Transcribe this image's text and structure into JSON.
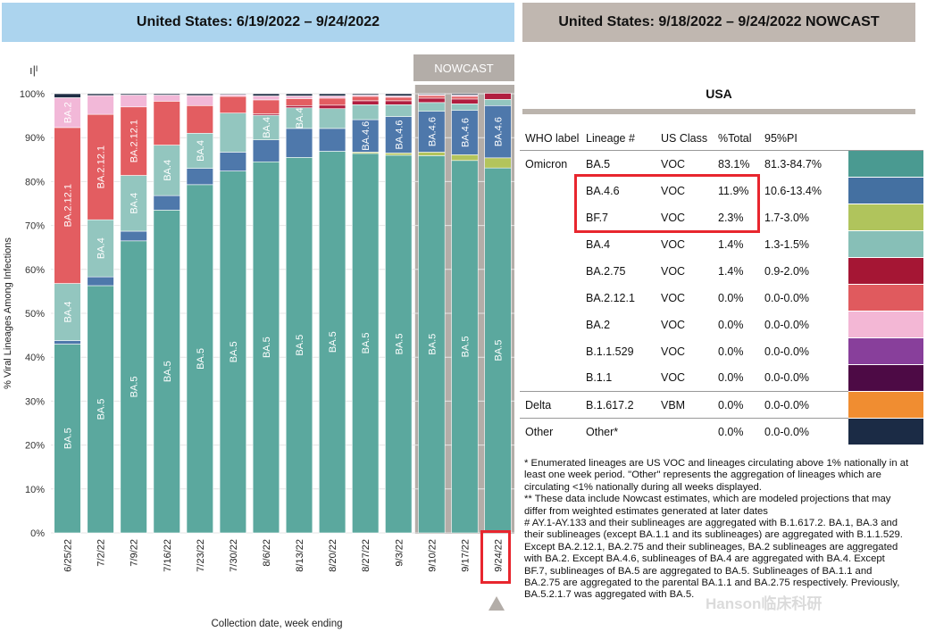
{
  "header_left": "United States: 6/19/2022 – 9/24/2022",
  "header_right": "United States: 9/18/2022 – 9/24/2022 NOWCAST",
  "nowcast_label": "NOWCAST",
  "usa_title": "USA",
  "chart_icon": "bar-chart-icon",
  "chart_data": {
    "type": "bar",
    "stacked": true,
    "ylabel": "% Viral Lineages Among Infections",
    "xlabel": "Collection date, week ending",
    "ylim": [
      0,
      100
    ],
    "yticks": [
      "0%",
      "10%",
      "20%",
      "30%",
      "40%",
      "50%",
      "60%",
      "70%",
      "80%",
      "90%",
      "100%"
    ],
    "categories": [
      "6/25/22",
      "7/2/22",
      "7/9/22",
      "7/16/22",
      "7/23/22",
      "7/30/22",
      "8/6/22",
      "8/13/22",
      "8/20/22",
      "8/27/22",
      "9/3/22",
      "9/10/22",
      "9/17/22",
      "9/24/22"
    ],
    "nowcast_categories": [
      "9/10/22",
      "9/17/22",
      "9/24/22"
    ],
    "highlighted_category": "9/24/22",
    "series": [
      {
        "name": "BA.5",
        "color": "#5ba89e",
        "values": [
          43,
          56.3,
          66.5,
          73.5,
          79.3,
          82.4,
          84.5,
          85.5,
          86.9,
          86.4,
          86,
          85.9,
          84.8,
          83.1
        ]
      },
      {
        "name": "BF.7",
        "color": "#b3c45c",
        "values": [
          0,
          0,
          0,
          0,
          0,
          0,
          0,
          0,
          0,
          0.3,
          0.5,
          0.8,
          1.3,
          2.3
        ]
      },
      {
        "name": "BA.4.6",
        "color": "#4e78ab",
        "values": [
          0.8,
          2,
          2.2,
          3.3,
          3.7,
          4.3,
          5,
          6.6,
          5.2,
          7.4,
          8.3,
          9.3,
          10.1,
          11.9
        ]
      },
      {
        "name": "BA.4",
        "color": "#93c6bf",
        "values": [
          13,
          13,
          12.7,
          11.5,
          8,
          8.9,
          5.6,
          4.7,
          4.5,
          3.4,
          2.7,
          2,
          1.5,
          1.4
        ]
      },
      {
        "name": "BA.2.75",
        "color": "#b11e3f",
        "values": [
          0,
          0,
          0,
          0,
          0,
          0,
          0.3,
          0.5,
          0.8,
          0.9,
          0.9,
          1,
          1.1,
          1.4
        ]
      },
      {
        "name": "BA.2.12.1",
        "color": "#e35d61",
        "values": [
          35.5,
          24,
          15.6,
          10,
          6.3,
          3.8,
          3.2,
          1.6,
          1.6,
          1,
          0.8,
          0.6,
          0.6,
          0
        ]
      },
      {
        "name": "BA.2",
        "color": "#f2b8d8",
        "values": [
          6.8,
          4.3,
          2.7,
          1.4,
          2.3,
          0.4,
          0.9,
          0.6,
          0.5,
          0.3,
          0.3,
          0.2,
          0.3,
          0
        ]
      },
      {
        "name": "Other",
        "color": "#1f2e45",
        "values": [
          0.9,
          0.4,
          0.3,
          0.3,
          0.4,
          0.2,
          0.5,
          0.5,
          0.5,
          0.3,
          0.5,
          0.2,
          0.3,
          0
        ]
      }
    ],
    "bar_labels": [
      {
        "bar": 0,
        "series": "BA.5",
        "text": "BA.5"
      },
      {
        "bar": 0,
        "series": "BA.4",
        "text": "BA.4"
      },
      {
        "bar": 0,
        "series": "BA.2.12.1",
        "text": "BA.2.12.1"
      },
      {
        "bar": 0,
        "series": "BA.2",
        "text": "BA.2"
      },
      {
        "bar": 1,
        "series": "BA.5",
        "text": "BA.5"
      },
      {
        "bar": 1,
        "series": "BA.4",
        "text": "BA.4"
      },
      {
        "bar": 1,
        "series": "BA.2.12.1",
        "text": "BA.2.12.1"
      },
      {
        "bar": 2,
        "series": "BA.5",
        "text": "BA.5"
      },
      {
        "bar": 2,
        "series": "BA.4",
        "text": "BA.4"
      },
      {
        "bar": 2,
        "series": "BA.2.12.1",
        "text": "BA.2.12.1"
      },
      {
        "bar": 3,
        "series": "BA.5",
        "text": "BA.5"
      },
      {
        "bar": 3,
        "series": "BA.4",
        "text": "BA.4"
      },
      {
        "bar": 4,
        "series": "BA.5",
        "text": "BA.5"
      },
      {
        "bar": 4,
        "series": "BA.4",
        "text": "BA.4"
      },
      {
        "bar": 5,
        "series": "BA.5",
        "text": "BA.5"
      },
      {
        "bar": 6,
        "series": "BA.5",
        "text": "BA.5"
      },
      {
        "bar": 6,
        "series": "BA.4",
        "text": "BA.4"
      },
      {
        "bar": 7,
        "series": "BA.5",
        "text": "BA.5"
      },
      {
        "bar": 7,
        "series": "BA.4",
        "text": "BA.4"
      },
      {
        "bar": 8,
        "series": "BA.5",
        "text": "BA.5"
      },
      {
        "bar": 9,
        "series": "BA.5",
        "text": "BA.5"
      },
      {
        "bar": 9,
        "series": "BA.4.6",
        "text": "BA.4.6"
      },
      {
        "bar": 10,
        "series": "BA.5",
        "text": "BA.5"
      },
      {
        "bar": 10,
        "series": "BA.4.6",
        "text": "BA.4.6"
      },
      {
        "bar": 11,
        "series": "BA.5",
        "text": "BA.5"
      },
      {
        "bar": 11,
        "series": "BA.4.6",
        "text": "BA.4.6"
      },
      {
        "bar": 12,
        "series": "BA.5",
        "text": "BA.5"
      },
      {
        "bar": 12,
        "series": "BA.4.6",
        "text": "BA.4.6"
      },
      {
        "bar": 13,
        "series": "BA.5",
        "text": "BA.5"
      },
      {
        "bar": 13,
        "series": "BA.4.6",
        "text": "BA.4.6"
      }
    ]
  },
  "table": {
    "columns": [
      "WHO label",
      "Lineage #",
      "US Class",
      "%Total",
      "95%PI"
    ],
    "rows": [
      {
        "who": "Omicron",
        "lineage": "BA.5",
        "class": "VOC",
        "total": "83.1%",
        "pi": "81.3-84.7%",
        "color": "#4a9a91"
      },
      {
        "who": "",
        "lineage": "BA.4.6",
        "class": "VOC",
        "total": "11.9%",
        "pi": "10.6-13.4%",
        "color": "#4470a1",
        "highlight": true
      },
      {
        "who": "",
        "lineage": "BF.7",
        "class": "VOC",
        "total": "2.3%",
        "pi": "1.7-3.0%",
        "color": "#b0c45c",
        "highlight": true
      },
      {
        "who": "",
        "lineage": "BA.4",
        "class": "VOC",
        "total": "1.4%",
        "pi": "1.3-1.5%",
        "color": "#87bfb7"
      },
      {
        "who": "",
        "lineage": "BA.2.75",
        "class": "VOC",
        "total": "1.4%",
        "pi": "0.9-2.0%",
        "color": "#a51634"
      },
      {
        "who": "",
        "lineage": "BA.2.12.1",
        "class": "VOC",
        "total": "0.0%",
        "pi": "0.0-0.0%",
        "color": "#e05a5e"
      },
      {
        "who": "",
        "lineage": "BA.2",
        "class": "VOC",
        "total": "0.0%",
        "pi": "0.0-0.0%",
        "color": "#f3b7d5"
      },
      {
        "who": "",
        "lineage": "B.1.1.529",
        "class": "VOC",
        "total": "0.0%",
        "pi": "0.0-0.0%",
        "color": "#883f9b"
      },
      {
        "who": "",
        "lineage": "B.1.1",
        "class": "VOC",
        "total": "0.0%",
        "pi": "0.0-0.0%",
        "color": "#4d0a45",
        "group_end": true
      },
      {
        "who": "Delta",
        "lineage": "B.1.617.2",
        "class": "VBM",
        "total": "0.0%",
        "pi": "0.0-0.0%",
        "color": "#f08d31",
        "group_end": true
      },
      {
        "who": "Other",
        "lineage": "Other*",
        "class": "",
        "total": "0.0%",
        "pi": "0.0-0.0%",
        "color": "#1b2b45"
      }
    ]
  },
  "notes": [
    "*     Enumerated lineages are US VOC and lineages circulating above 1% nationally in at least one week period. \"Other\" represents the aggregation of lineages which are circulating <1% nationally during all weeks displayed.",
    "**     These data include Nowcast estimates, which are modeled projections that may differ from weighted estimates generated at later dates",
    "#     AY.1-AY.133 and their sublineages are aggregated with B.1.617.2. BA.1, BA.3 and their sublineages (except BA.1.1 and its sublineages) are aggregated with B.1.1.529. Except BA.2.12.1, BA.2.75 and their sublineages, BA.2 sublineages are aggregated with BA.2. Except BA.4.6, sublineages of BA.4 are aggregated with BA.4. Except BF.7, sublineages of BA.5 are aggregated to BA.5. Sublineages of BA.1.1 and BA.2.75 are aggregated to the parental BA.1.1 and BA.2.75 respectively. Previously, BA.5.2.1.7 was aggregated with BA.5."
  ],
  "watermark": "Hanson临床科研"
}
